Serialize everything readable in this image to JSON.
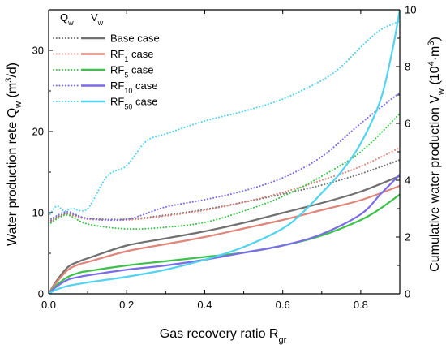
{
  "chart_data": {
    "type": "line",
    "xlabel": "Gas recovery ratio R",
    "xlabel_sub": "gr",
    "ylabel_left": "Water production rete Q",
    "ylabel_left_sub": "w",
    "ylabel_left_unit_pre": " (m",
    "ylabel_left_unit_sup": "3",
    "ylabel_left_unit_post": "/d)",
    "ylabel_right": "Cumulative water production V",
    "ylabel_right_sub": "w",
    "ylabel_right_unit_pre": " (10",
    "ylabel_right_unit_sup": "4",
    "ylabel_right_unit_mid": "·m",
    "ylabel_right_unit_sup2": "3",
    "ylabel_right_unit_post": ")",
    "xlim": [
      0,
      0.9
    ],
    "ylim_left": [
      0,
      35
    ],
    "ylim_right": [
      0,
      10
    ],
    "xticks": [
      0.0,
      0.2,
      0.4,
      0.6,
      0.8
    ],
    "xtick_labels": [
      "0.0",
      "0.2",
      "0.4",
      "0.6",
      "0.8"
    ],
    "yticks_left": [
      0,
      10,
      20,
      30
    ],
    "ytick_labels_left": [
      "0",
      "10",
      "20",
      "30"
    ],
    "yticks_right": [
      0,
      2,
      4,
      6,
      8,
      10
    ],
    "ytick_labels_right": [
      "0",
      "2",
      "4",
      "6",
      "8",
      "10"
    ],
    "legend": {
      "placement": "top-left",
      "header_q": "Q",
      "header_q_sub": "w",
      "header_v": "V",
      "header_v_sub": "w",
      "entries": [
        {
          "name": "Base case",
          "name_main": "Base",
          "name_sub": "",
          "name_tail": " case",
          "color": "#707070"
        },
        {
          "name": "RF1 case",
          "name_main": "RF",
          "name_sub": "1",
          "name_tail": "   case",
          "color": "#E0857A"
        },
        {
          "name": "RF5 case",
          "name_main": "RF",
          "name_sub": "5",
          "name_tail": "   case",
          "color": "#3CC24A"
        },
        {
          "name": "RF10 case",
          "name_main": "RF",
          "name_sub": "10",
          "name_tail": " case",
          "color": "#7A6CE8"
        },
        {
          "name": "RF50 case",
          "name_main": "RF",
          "name_sub": "50",
          "name_tail": " case",
          "color": "#52D3EE"
        }
      ]
    },
    "series": [
      {
        "legend_index": 0,
        "axis": "left",
        "style": "dotted",
        "x": [
          0,
          0.02,
          0.05,
          0.1,
          0.2,
          0.3,
          0.4,
          0.5,
          0.6,
          0.7,
          0.8,
          0.9
        ],
        "y": [
          8.8,
          9.4,
          9.9,
          9.3,
          9.2,
          9.7,
          10.4,
          11.3,
          12.3,
          13.4,
          14.8,
          16.5
        ]
      },
      {
        "legend_index": 1,
        "axis": "left",
        "style": "dotted",
        "x": [
          0,
          0.02,
          0.05,
          0.1,
          0.2,
          0.3,
          0.4,
          0.5,
          0.6,
          0.7,
          0.8,
          0.9
        ],
        "y": [
          8.6,
          9.3,
          9.8,
          9.2,
          9.1,
          9.6,
          10.3,
          11.3,
          12.5,
          14.0,
          15.7,
          18.0
        ]
      },
      {
        "legend_index": 2,
        "axis": "left",
        "style": "dotted",
        "x": [
          0,
          0.02,
          0.05,
          0.1,
          0.2,
          0.3,
          0.4,
          0.5,
          0.6,
          0.7,
          0.8,
          0.9
        ],
        "y": [
          8.5,
          9.2,
          9.7,
          8.6,
          8.0,
          8.2,
          8.8,
          10.2,
          12.0,
          14.5,
          17.5,
          22.2
        ]
      },
      {
        "legend_index": 3,
        "axis": "left",
        "style": "dotted",
        "x": [
          0,
          0.02,
          0.05,
          0.1,
          0.2,
          0.3,
          0.4,
          0.5,
          0.6,
          0.7,
          0.8,
          0.9
        ],
        "y": [
          9.0,
          9.6,
          10.1,
          9.3,
          9.2,
          10.7,
          11.6,
          12.7,
          14.3,
          16.9,
          21.0,
          24.8
        ]
      },
      {
        "legend_index": 4,
        "axis": "left",
        "style": "dotted",
        "x": [
          0,
          0.02,
          0.04,
          0.06,
          0.1,
          0.15,
          0.2,
          0.25,
          0.3,
          0.4,
          0.5,
          0.6,
          0.7,
          0.75,
          0.8,
          0.85,
          0.9
        ],
        "y": [
          9.5,
          10.8,
          10.2,
          10.5,
          10.5,
          14.5,
          15.8,
          18.8,
          19.7,
          21.3,
          22.5,
          24.0,
          26.3,
          28.0,
          30.4,
          32.5,
          33.6
        ]
      },
      {
        "legend_index": 0,
        "axis": "right",
        "style": "solid",
        "x": [
          0,
          0.02,
          0.05,
          0.08,
          0.1,
          0.2,
          0.3,
          0.4,
          0.5,
          0.6,
          0.7,
          0.8,
          0.9
        ],
        "y": [
          0,
          0.45,
          0.95,
          1.15,
          1.25,
          1.7,
          1.95,
          2.2,
          2.5,
          2.85,
          3.2,
          3.6,
          4.15
        ]
      },
      {
        "legend_index": 1,
        "axis": "right",
        "style": "solid",
        "x": [
          0,
          0.02,
          0.05,
          0.08,
          0.1,
          0.2,
          0.3,
          0.4,
          0.5,
          0.6,
          0.7,
          0.8,
          0.9
        ],
        "y": [
          0,
          0.4,
          0.85,
          1.05,
          1.12,
          1.5,
          1.75,
          2.0,
          2.3,
          2.6,
          2.95,
          3.3,
          3.8
        ]
      },
      {
        "legend_index": 2,
        "axis": "right",
        "style": "solid",
        "x": [
          0,
          0.02,
          0.05,
          0.08,
          0.1,
          0.2,
          0.3,
          0.4,
          0.5,
          0.6,
          0.7,
          0.8,
          0.85,
          0.9
        ],
        "y": [
          0,
          0.3,
          0.6,
          0.75,
          0.8,
          1.0,
          1.15,
          1.3,
          1.45,
          1.7,
          2.05,
          2.6,
          3.0,
          3.5
        ]
      },
      {
        "legend_index": 3,
        "axis": "right",
        "style": "solid",
        "x": [
          0,
          0.02,
          0.05,
          0.08,
          0.1,
          0.2,
          0.3,
          0.4,
          0.5,
          0.6,
          0.7,
          0.8,
          0.85,
          0.9
        ],
        "y": [
          0,
          0.25,
          0.5,
          0.6,
          0.65,
          0.85,
          1.0,
          1.2,
          1.45,
          1.7,
          2.1,
          2.8,
          3.5,
          4.2
        ]
      },
      {
        "legend_index": 4,
        "axis": "right",
        "style": "solid",
        "x": [
          0,
          0.02,
          0.05,
          0.1,
          0.2,
          0.3,
          0.4,
          0.5,
          0.6,
          0.65,
          0.7,
          0.75,
          0.8,
          0.85,
          0.88,
          0.9
        ],
        "y": [
          0,
          0.15,
          0.28,
          0.4,
          0.6,
          0.85,
          1.2,
          1.65,
          2.3,
          2.85,
          3.55,
          4.3,
          5.3,
          6.8,
          8.5,
          10.0
        ]
      }
    ]
  }
}
